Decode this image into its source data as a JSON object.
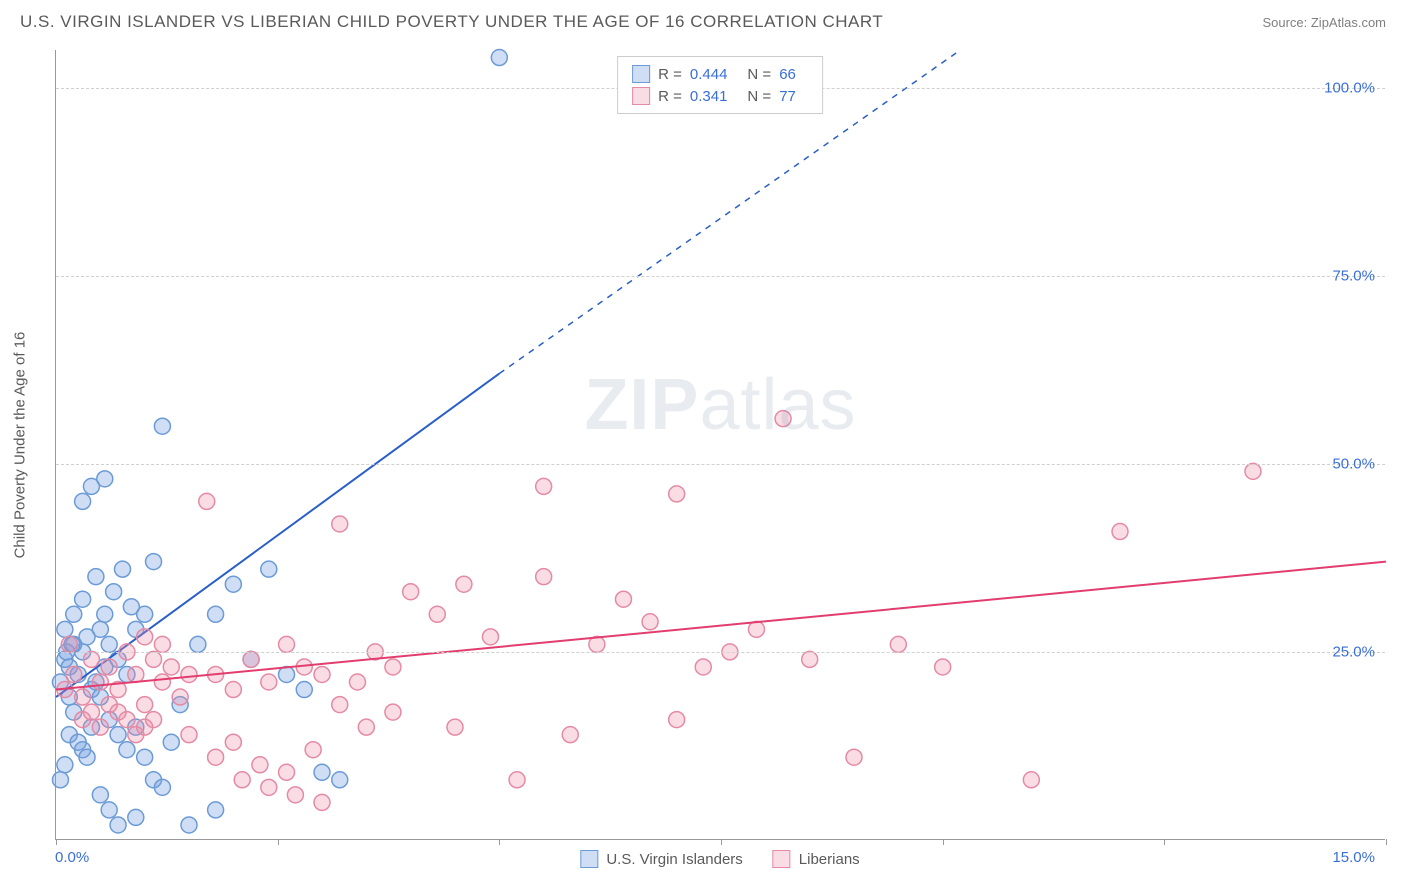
{
  "title": "U.S. VIRGIN ISLANDER VS LIBERIAN CHILD POVERTY UNDER THE AGE OF 16 CORRELATION CHART",
  "source": "Source: ZipAtlas.com",
  "watermark_zip": "ZIP",
  "watermark_atlas": "atlas",
  "chart": {
    "type": "scatter",
    "xlim": [
      0,
      15
    ],
    "ylim": [
      0,
      105
    ],
    "xtick_positions": [
      0,
      2.5,
      5,
      7.5,
      10,
      12.5,
      15
    ],
    "x_label_min": "0.0%",
    "x_label_max": "15.0%",
    "y_gridlines": [
      25,
      50,
      75,
      100
    ],
    "y_tick_labels": [
      "25.0%",
      "50.0%",
      "75.0%",
      "100.0%"
    ],
    "y_axis_label": "Child Poverty Under the Age of 16",
    "background_color": "#ffffff",
    "grid_color": "#d0d0d0",
    "axis_color": "#999999",
    "tick_label_color": "#3a6fd8",
    "marker_radius": 8,
    "marker_stroke_width": 1.5,
    "line_width": 2,
    "series": [
      {
        "name": "U.S. Virgin Islanders",
        "color_fill": "rgba(120,160,225,0.35)",
        "color_stroke": "#6b9bd6",
        "line_color": "#2a5fc8",
        "r_value": "0.444",
        "n_value": "66",
        "regression": {
          "x1": 0,
          "y1": 19,
          "x2": 5,
          "y2": 62,
          "dash_x2": 10.2,
          "dash_y2": 105
        },
        "points": [
          [
            0.05,
            21
          ],
          [
            0.1,
            24
          ],
          [
            0.15,
            19
          ],
          [
            0.2,
            26
          ],
          [
            0.1,
            28
          ],
          [
            0.25,
            22
          ],
          [
            0.3,
            25
          ],
          [
            0.2,
            30
          ],
          [
            0.35,
            27
          ],
          [
            0.15,
            23
          ],
          [
            0.4,
            20
          ],
          [
            0.3,
            32
          ],
          [
            0.5,
            28
          ],
          [
            0.45,
            35
          ],
          [
            0.6,
            26
          ],
          [
            0.55,
            30
          ],
          [
            0.7,
            24
          ],
          [
            0.65,
            33
          ],
          [
            0.8,
            22
          ],
          [
            0.75,
            36
          ],
          [
            0.9,
            28
          ],
          [
            0.85,
            31
          ],
          [
            1.0,
            30
          ],
          [
            1.1,
            37
          ],
          [
            0.4,
            47
          ],
          [
            0.55,
            48
          ],
          [
            0.3,
            45
          ],
          [
            1.2,
            55
          ],
          [
            0.6,
            16
          ],
          [
            0.7,
            14
          ],
          [
            0.8,
            12
          ],
          [
            0.9,
            15
          ],
          [
            1.0,
            11
          ],
          [
            1.1,
            8
          ],
          [
            0.5,
            6
          ],
          [
            0.6,
            4
          ],
          [
            0.7,
            2
          ],
          [
            0.9,
            3
          ],
          [
            1.2,
            7
          ],
          [
            1.3,
            13
          ],
          [
            1.4,
            18
          ],
          [
            1.6,
            26
          ],
          [
            1.8,
            30
          ],
          [
            2.0,
            34
          ],
          [
            2.2,
            24
          ],
          [
            2.4,
            36
          ],
          [
            2.6,
            22
          ],
          [
            2.8,
            20
          ],
          [
            3.0,
            9
          ],
          [
            3.2,
            8
          ],
          [
            1.5,
            2
          ],
          [
            1.8,
            4
          ],
          [
            0.3,
            12
          ],
          [
            0.4,
            15
          ],
          [
            0.2,
            17
          ],
          [
            0.15,
            14
          ],
          [
            0.25,
            13
          ],
          [
            0.35,
            11
          ],
          [
            0.1,
            10
          ],
          [
            0.05,
            8
          ],
          [
            0.5,
            19
          ],
          [
            0.45,
            21
          ],
          [
            0.55,
            23
          ],
          [
            0.12,
            25
          ],
          [
            0.18,
            26
          ],
          [
            5.0,
            104
          ]
        ]
      },
      {
        "name": "Liberians",
        "color_fill": "rgba(235,140,165,0.30)",
        "color_stroke": "#e58aa5",
        "line_color": "#e23d6e",
        "r_value": "0.341",
        "n_value": "77",
        "regression": {
          "x1": 0,
          "y1": 20,
          "x2": 15,
          "y2": 37,
          "dash_x2": 15,
          "dash_y2": 37
        },
        "points": [
          [
            0.1,
            20
          ],
          [
            0.2,
            22
          ],
          [
            0.3,
            19
          ],
          [
            0.4,
            24
          ],
          [
            0.5,
            21
          ],
          [
            0.6,
            23
          ],
          [
            0.7,
            20
          ],
          [
            0.8,
            25
          ],
          [
            0.9,
            22
          ],
          [
            1.0,
            18
          ],
          [
            1.1,
            24
          ],
          [
            1.2,
            21
          ],
          [
            1.3,
            23
          ],
          [
            1.4,
            19
          ],
          [
            1.5,
            22
          ],
          [
            0.3,
            16
          ],
          [
            0.5,
            15
          ],
          [
            0.7,
            17
          ],
          [
            0.9,
            14
          ],
          [
            1.1,
            16
          ],
          [
            0.4,
            17
          ],
          [
            0.6,
            18
          ],
          [
            0.8,
            16
          ],
          [
            1.0,
            15
          ],
          [
            1.8,
            22
          ],
          [
            2.0,
            20
          ],
          [
            2.2,
            24
          ],
          [
            2.4,
            21
          ],
          [
            2.6,
            26
          ],
          [
            2.8,
            23
          ],
          [
            3.0,
            22
          ],
          [
            3.2,
            18
          ],
          [
            3.4,
            21
          ],
          [
            3.6,
            25
          ],
          [
            3.8,
            23
          ],
          [
            1.7,
            45
          ],
          [
            0.15,
            26
          ],
          [
            1.0,
            27
          ],
          [
            1.2,
            26
          ],
          [
            2.0,
            13
          ],
          [
            2.3,
            10
          ],
          [
            2.6,
            9
          ],
          [
            2.9,
            12
          ],
          [
            1.5,
            14
          ],
          [
            1.8,
            11
          ],
          [
            2.1,
            8
          ],
          [
            2.4,
            7
          ],
          [
            2.7,
            6
          ],
          [
            3.0,
            5
          ],
          [
            3.5,
            15
          ],
          [
            4.0,
            33
          ],
          [
            4.3,
            30
          ],
          [
            4.6,
            34
          ],
          [
            4.9,
            27
          ],
          [
            5.2,
            8
          ],
          [
            5.5,
            35
          ],
          [
            5.5,
            47
          ],
          [
            5.8,
            14
          ],
          [
            6.1,
            26
          ],
          [
            6.4,
            32
          ],
          [
            6.7,
            29
          ],
          [
            7.0,
            16
          ],
          [
            7.3,
            23
          ],
          [
            7.6,
            25
          ],
          [
            7.9,
            28
          ],
          [
            7.0,
            46
          ],
          [
            8.2,
            56
          ],
          [
            8.5,
            24
          ],
          [
            9.0,
            11
          ],
          [
            9.5,
            26
          ],
          [
            10.0,
            23
          ],
          [
            11.0,
            8
          ],
          [
            12.0,
            41
          ],
          [
            13.5,
            49
          ],
          [
            4.5,
            15
          ],
          [
            3.8,
            17
          ],
          [
            3.2,
            42
          ]
        ]
      }
    ]
  },
  "legend_labels": {
    "r_prefix": "R =",
    "n_prefix": "N ="
  }
}
